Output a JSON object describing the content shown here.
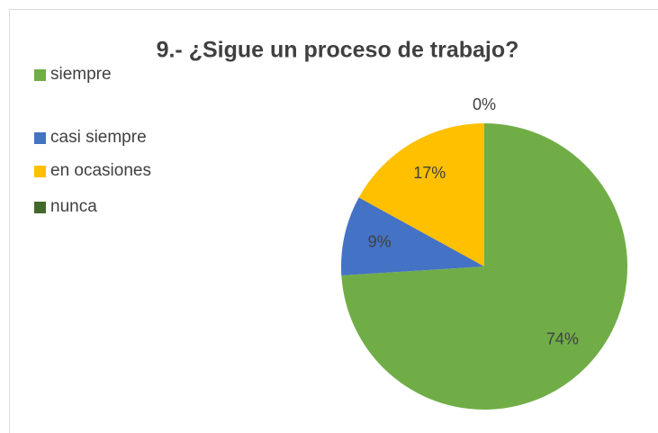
{
  "chart_data": {
    "type": "pie",
    "title": "9.- ¿Sigue un proceso de trabajo?",
    "categories": [
      "siempre",
      "casi siempre",
      "en ocasiones",
      "nunca"
    ],
    "values": [
      74,
      9,
      17,
      0
    ],
    "value_labels": [
      "74%",
      "9%",
      "17%",
      "0%"
    ],
    "colors": [
      "#70ad47",
      "#4472c4",
      "#ffc000",
      "#43682b"
    ],
    "legend": "left"
  }
}
